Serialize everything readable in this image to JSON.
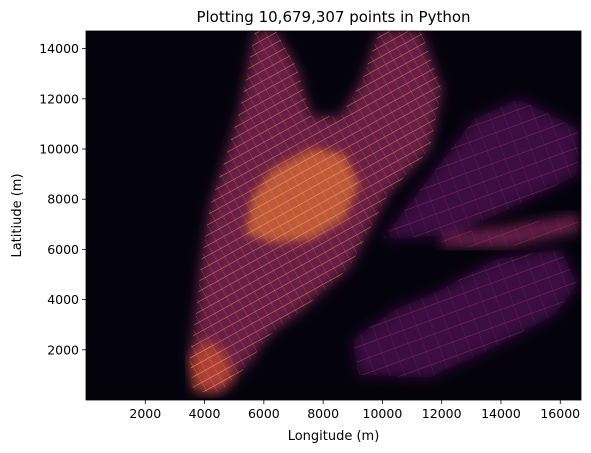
{
  "chart_data": {
    "type": "heatmap",
    "title": "Plotting 10,679,307 points in Python",
    "xlabel": "Longitude (m)",
    "ylabel": "Latitiude (m)",
    "xlim": [
      0,
      16700
    ],
    "ylim": [
      0,
      14700
    ],
    "xticks": [
      2000,
      4000,
      6000,
      8000,
      10000,
      12000,
      14000,
      16000
    ],
    "xtick_labels": [
      "2000",
      "4000",
      "6000",
      "8000",
      "10000",
      "12000",
      "14000",
      "16000"
    ],
    "yticks": [
      2000,
      4000,
      6000,
      8000,
      10000,
      12000,
      14000
    ],
    "ytick_labels": [
      "2000",
      "4000",
      "6000",
      "8000",
      "10000",
      "12000",
      "14000"
    ],
    "grid": false,
    "colormap": "inferno",
    "background_color": "#04030d",
    "regions": [
      {
        "name": "",
        "polygon": [
          [
            3800,
            300
          ],
          [
            4600,
            400
          ],
          [
            5300,
            1200
          ],
          [
            6200,
            2600
          ],
          [
            7300,
            3600
          ],
          [
            8900,
            5300
          ],
          [
            10200,
            8200
          ],
          [
            11600,
            10000
          ],
          [
            12000,
            12400
          ],
          [
            11300,
            14700
          ],
          [
            9900,
            14700
          ],
          [
            9300,
            12700
          ],
          [
            8600,
            11300
          ],
          [
            7600,
            11300
          ],
          [
            7100,
            13300
          ],
          [
            6400,
            14700
          ],
          [
            5700,
            14700
          ],
          [
            5200,
            11600
          ],
          [
            4700,
            9600
          ],
          [
            4200,
            7800
          ],
          [
            3900,
            5600
          ],
          [
            3700,
            3400
          ],
          [
            3500,
            1600
          ]
        ],
        "intensity": 0.55
      },
      {
        "name": "",
        "polygon": [
          [
            5400,
            6600
          ],
          [
            6300,
            6300
          ],
          [
            7600,
            6400
          ],
          [
            8700,
            7200
          ],
          [
            9200,
            8600
          ],
          [
            8700,
            9800
          ],
          [
            7600,
            10000
          ],
          [
            6300,
            9200
          ],
          [
            5600,
            8100
          ]
        ],
        "intensity": 0.85
      },
      {
        "name": "",
        "polygon": [
          [
            3600,
            400
          ],
          [
            4500,
            300
          ],
          [
            5000,
            900
          ],
          [
            4700,
            1900
          ],
          [
            4000,
            2400
          ],
          [
            3500,
            1700
          ]
        ],
        "intensity": 0.75
      },
      {
        "name": "",
        "polygon": [
          [
            10000,
            6400
          ],
          [
            12400,
            6600
          ],
          [
            14600,
            7800
          ],
          [
            16600,
            9000
          ],
          [
            16600,
            10800
          ],
          [
            14600,
            12000
          ],
          [
            13100,
            11200
          ],
          [
            11800,
            9200
          ]
        ],
        "intensity": 0.3
      },
      {
        "name": "",
        "polygon": [
          [
            9200,
            1000
          ],
          [
            11600,
            900
          ],
          [
            13600,
            2000
          ],
          [
            15800,
            3400
          ],
          [
            16600,
            4600
          ],
          [
            16000,
            6000
          ],
          [
            13800,
            5600
          ],
          [
            12000,
            4400
          ],
          [
            10400,
            3600
          ],
          [
            9000,
            2400
          ]
        ],
        "intensity": 0.28
      },
      {
        "name": "",
        "polygon": [
          [
            12000,
            6100
          ],
          [
            14200,
            6100
          ],
          [
            16600,
            6700
          ],
          [
            16600,
            7400
          ],
          [
            14200,
            6900
          ],
          [
            12000,
            6600
          ]
        ],
        "intensity": 0.4
      }
    ]
  }
}
